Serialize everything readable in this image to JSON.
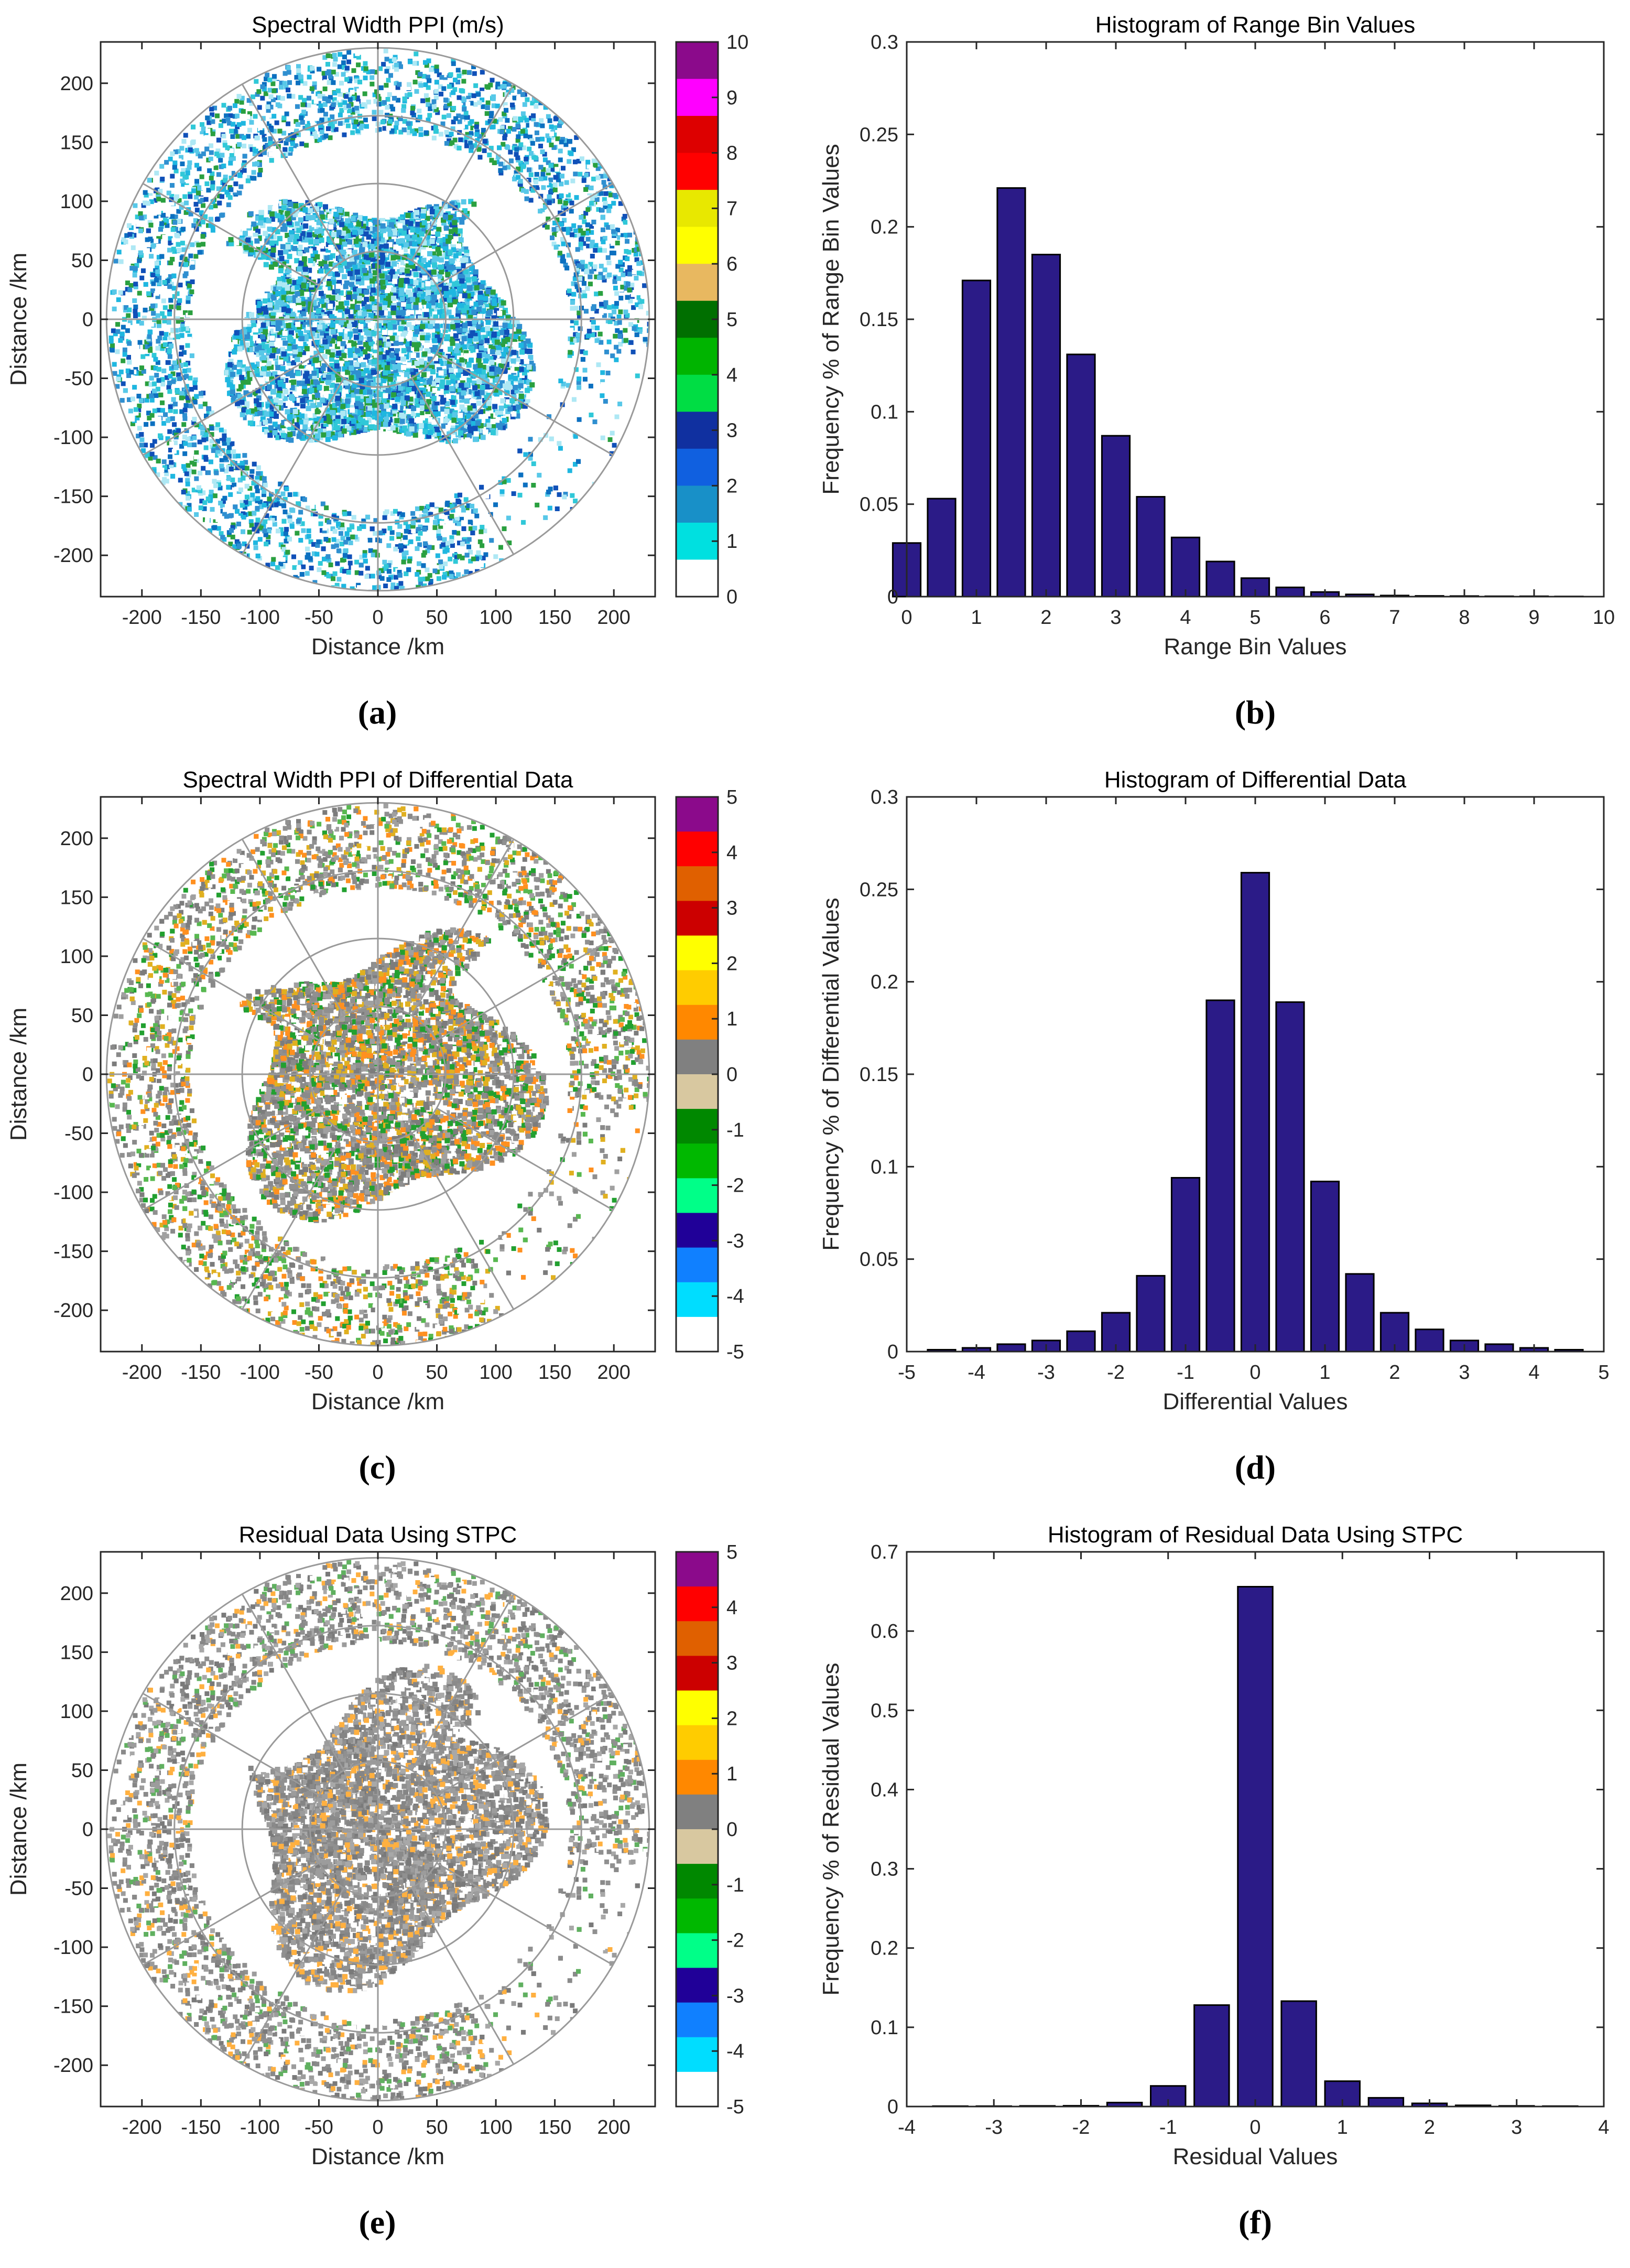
{
  "figure": {
    "rows": [
      {
        "ppi": {
          "title": "Spectral Width PPI (m/s)",
          "xlabel": "Distance /km",
          "ylabel": "Distance /km",
          "colorbar_ticks": [
            "10",
            "9",
            "8",
            "7",
            "6",
            "5",
            "4",
            "3",
            "2",
            "1",
            "0"
          ],
          "colorbar_colors": [
            "#8b0a8b",
            "#ff00ff",
            "#dd0000",
            "#ff0000",
            "#e8e800",
            "#ffff00",
            "#e8b860",
            "#006f00",
            "#00b400",
            "#00dd44",
            "#1030a0",
            "#1060e0",
            "#1890c8",
            "#00e0e0",
            "#ffffff"
          ],
          "panel_label": "(a)"
        },
        "hist_label": "(b)"
      },
      {
        "ppi": {
          "title": "Spectral Width PPI of Differential Data",
          "xlabel": "Distance /km",
          "ylabel": "Distance /km",
          "colorbar_ticks": [
            "5",
            "4",
            "3",
            "2",
            "1",
            "0",
            "-1",
            "-2",
            "-3",
            "-4",
            "-5"
          ],
          "colorbar_colors": [
            "#8b0a8b",
            "#ff0000",
            "#e06000",
            "#cc0000",
            "#ffff00",
            "#ffcc00",
            "#ff8800",
            "#808080",
            "#d8c8a0",
            "#008800",
            "#00b800",
            "#00ff88",
            "#200098",
            "#1080ff",
            "#00ddff",
            "#ffffff"
          ],
          "panel_label": "(c)"
        },
        "hist_label": "(d)"
      },
      {
        "ppi": {
          "title": "Residual Data Using STPC",
          "xlabel": "Distance /km",
          "ylabel": "Distance /km",
          "colorbar_ticks": [
            "5",
            "4",
            "3",
            "2",
            "1",
            "0",
            "-1",
            "-2",
            "-3",
            "-4",
            "-5"
          ],
          "colorbar_colors": [
            "#8b0a8b",
            "#ff0000",
            "#e06000",
            "#cc0000",
            "#ffff00",
            "#ffcc00",
            "#ff8800",
            "#808080",
            "#d8c8a0",
            "#008800",
            "#00b800",
            "#00ff88",
            "#200098",
            "#1080ff",
            "#00ddff",
            "#ffffff"
          ],
          "panel_label": "(e)"
        },
        "hist_label": "(f)"
      }
    ],
    "ppi_axis_ticks": [
      "-200",
      "-150",
      "-100",
      "-50",
      "0",
      "50",
      "100",
      "150",
      "200"
    ],
    "ppi_axis_values": [
      -200,
      -150,
      -100,
      -50,
      0,
      50,
      100,
      150,
      200
    ],
    "ppi_range": [
      -235,
      235
    ]
  },
  "chart_data": [
    {
      "type": "bar",
      "title": "Histogram of Range Bin Values",
      "xlabel": "Range Bin Values",
      "ylabel": "Frequency % of Range Bin Values",
      "x": [
        0,
        0.5,
        1,
        1.5,
        2,
        2.5,
        3,
        3.5,
        4,
        4.5,
        5,
        5.5,
        6,
        6.5,
        7,
        7.5,
        8,
        8.5,
        9,
        9.5
      ],
      "values": [
        0.029,
        0.053,
        0.171,
        0.221,
        0.185,
        0.131,
        0.087,
        0.054,
        0.032,
        0.019,
        0.01,
        0.005,
        0.0025,
        0.0012,
        0.0006,
        0.0004,
        0.0003,
        0.0002,
        0.0002,
        0.0001
      ],
      "xlim": [
        0,
        10
      ],
      "ylim": [
        0,
        0.3
      ],
      "xticks": [
        "0",
        "1",
        "2",
        "3",
        "4",
        "5",
        "6",
        "7",
        "8",
        "9",
        "10"
      ],
      "xtick_values": [
        0,
        1,
        2,
        3,
        4,
        5,
        6,
        7,
        8,
        9,
        10
      ],
      "yticks": [
        "0",
        "0.05",
        "0.1",
        "0.15",
        "0.2",
        "0.25",
        "0.3"
      ],
      "ytick_values": [
        0,
        0.05,
        0.1,
        0.15,
        0.2,
        0.25,
        0.3
      ]
    },
    {
      "type": "bar",
      "title": "Histogram of Differential Data",
      "xlabel": "Differential Values",
      "ylabel": "Frequency % of Differential Values",
      "x": [
        -4.5,
        -4,
        -3.5,
        -3,
        -2.5,
        -2,
        -1.5,
        -1,
        -0.5,
        0,
        0.5,
        1,
        1.5,
        2,
        2.5,
        3,
        3.5,
        4,
        4.5
      ],
      "values": [
        0.001,
        0.002,
        0.004,
        0.006,
        0.011,
        0.021,
        0.041,
        0.094,
        0.19,
        0.259,
        0.189,
        0.092,
        0.042,
        0.021,
        0.012,
        0.006,
        0.004,
        0.002,
        0.001
      ],
      "xlim": [
        -5,
        5
      ],
      "ylim": [
        0,
        0.3
      ],
      "xticks": [
        "-5",
        "-4",
        "-3",
        "-2",
        "-1",
        "0",
        "1",
        "2",
        "3",
        "4",
        "5"
      ],
      "xtick_values": [
        -5,
        -4,
        -3,
        -2,
        -1,
        0,
        1,
        2,
        3,
        4,
        5
      ],
      "yticks": [
        "0",
        "0.05",
        "0.1",
        "0.15",
        "0.2",
        "0.25",
        "0.3"
      ],
      "ytick_values": [
        0,
        0.05,
        0.1,
        0.15,
        0.2,
        0.25,
        0.3
      ]
    },
    {
      "type": "bar",
      "title": "Histogram of Residual Data Using STPC",
      "xlabel": "Residual Values",
      "ylabel": "Frequency % of Residual Values",
      "x": [
        -3.5,
        -3,
        -2.5,
        -2,
        -1.5,
        -1,
        -0.5,
        0,
        0.5,
        1,
        1.5,
        2,
        2.5,
        3,
        3.5
      ],
      "values": [
        0.0005,
        0.0005,
        0.0008,
        0.001,
        0.005,
        0.026,
        0.128,
        0.656,
        0.133,
        0.032,
        0.011,
        0.004,
        0.0015,
        0.0008,
        0.0005
      ],
      "xlim": [
        -4,
        4
      ],
      "ylim": [
        0,
        0.7
      ],
      "xticks": [
        "-4",
        "-3",
        "-2",
        "-1",
        "0",
        "1",
        "2",
        "3",
        "4"
      ],
      "xtick_values": [
        -4,
        -3,
        -2,
        -1,
        0,
        1,
        2,
        3,
        4
      ],
      "yticks": [
        "0",
        "0.1",
        "0.2",
        "0.3",
        "0.4",
        "0.5",
        "0.6",
        "0.7"
      ],
      "ytick_values": [
        0,
        0.1,
        0.2,
        0.3,
        0.4,
        0.5,
        0.6,
        0.7
      ]
    }
  ]
}
